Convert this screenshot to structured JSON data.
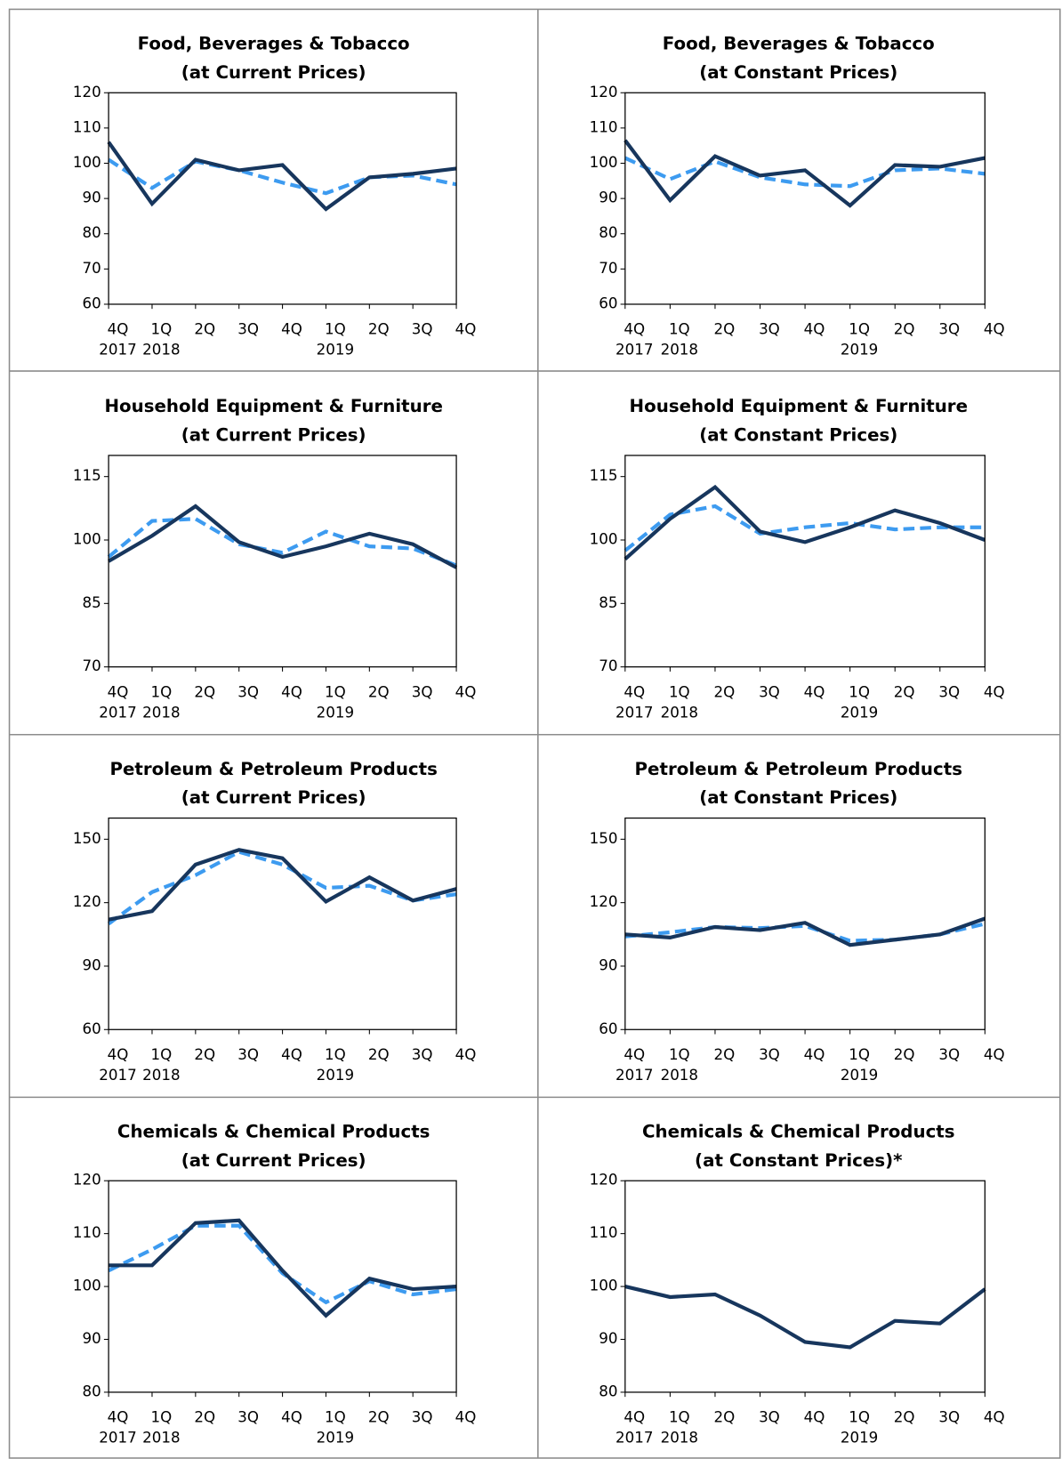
{
  "chart_data": [
    {
      "type": "line",
      "title": "Food, Beverages & Tobacco",
      "subtitle": "(at Current Prices)",
      "categories": [
        "4Q",
        "1Q",
        "2Q",
        "3Q",
        "4Q",
        "1Q",
        "2Q",
        "3Q",
        "4Q"
      ],
      "year_labels": [
        "2017",
        "2018",
        null,
        null,
        null,
        "2019",
        null,
        null,
        null
      ],
      "ylim": [
        60,
        120
      ],
      "yticks": [
        60,
        70,
        80,
        90,
        100,
        110,
        120
      ],
      "series": [
        {
          "color": "#3d9bf0",
          "dashed": true,
          "values": [
            101,
            93,
            100.5,
            98,
            94.5,
            91.5,
            96,
            96.5,
            94
          ]
        },
        {
          "color": "#17365d",
          "dashed": false,
          "values": [
            106,
            88.5,
            101,
            98,
            99.5,
            87,
            96,
            97,
            98.5
          ]
        }
      ]
    },
    {
      "type": "line",
      "title": "Food, Beverages & Tobacco",
      "subtitle": "(at Constant Prices)",
      "categories": [
        "4Q",
        "1Q",
        "2Q",
        "3Q",
        "4Q",
        "1Q",
        "2Q",
        "3Q",
        "4Q"
      ],
      "year_labels": [
        "2017",
        "2018",
        null,
        null,
        null,
        "2019",
        null,
        null,
        null
      ],
      "ylim": [
        60,
        120
      ],
      "yticks": [
        60,
        70,
        80,
        90,
        100,
        110,
        120
      ],
      "series": [
        {
          "color": "#3d9bf0",
          "dashed": true,
          "values": [
            101.5,
            95.5,
            100.5,
            96,
            94,
            93.5,
            98,
            98.5,
            97
          ]
        },
        {
          "color": "#17365d",
          "dashed": false,
          "values": [
            106.5,
            89.5,
            102,
            96.5,
            98,
            88,
            99.5,
            99,
            101.5
          ]
        }
      ]
    },
    {
      "type": "line",
      "title": "Household Equipment & Furniture",
      "subtitle": "(at Current Prices)",
      "categories": [
        "4Q",
        "1Q",
        "2Q",
        "3Q",
        "4Q",
        "1Q",
        "2Q",
        "3Q",
        "4Q"
      ],
      "year_labels": [
        "2017",
        "2018",
        null,
        null,
        null,
        "2019",
        null,
        null,
        null
      ],
      "ylim": [
        70,
        120
      ],
      "yticks": [
        70,
        85,
        100,
        115
      ],
      "series": [
        {
          "color": "#3d9bf0",
          "dashed": true,
          "values": [
            96,
            104.5,
            105,
            99,
            97,
            102,
            98.5,
            98,
            94
          ]
        },
        {
          "color": "#17365d",
          "dashed": false,
          "values": [
            95,
            101,
            108,
            99.5,
            96,
            98.5,
            101.5,
            99,
            93.5
          ]
        }
      ]
    },
    {
      "type": "line",
      "title": "Household Equipment & Furniture",
      "subtitle": "(at Constant Prices)",
      "categories": [
        "4Q",
        "1Q",
        "2Q",
        "3Q",
        "4Q",
        "1Q",
        "2Q",
        "3Q",
        "4Q"
      ],
      "year_labels": [
        "2017",
        "2018",
        null,
        null,
        null,
        "2019",
        null,
        null,
        null
      ],
      "ylim": [
        70,
        120
      ],
      "yticks": [
        70,
        85,
        100,
        115
      ],
      "series": [
        {
          "color": "#3d9bf0",
          "dashed": true,
          "values": [
            97.5,
            106,
            108,
            101.5,
            103,
            104,
            102.5,
            103,
            103
          ]
        },
        {
          "color": "#17365d",
          "dashed": false,
          "values": [
            95.5,
            105,
            112.5,
            102,
            99.5,
            103,
            107,
            104,
            100
          ]
        }
      ]
    },
    {
      "type": "line",
      "title": "Petroleum & Petroleum Products",
      "subtitle": "(at Current Prices)",
      "categories": [
        "4Q",
        "1Q",
        "2Q",
        "3Q",
        "4Q",
        "1Q",
        "2Q",
        "3Q",
        "4Q"
      ],
      "year_labels": [
        "2017",
        "2018",
        null,
        null,
        null,
        "2019",
        null,
        null,
        null
      ],
      "ylim": [
        60,
        160
      ],
      "yticks": [
        60,
        90,
        120,
        150
      ],
      "series": [
        {
          "color": "#3d9bf0",
          "dashed": true,
          "values": [
            110,
            125,
            133,
            144,
            138,
            127,
            128,
            121,
            124
          ]
        },
        {
          "color": "#17365d",
          "dashed": false,
          "values": [
            112,
            116,
            138,
            145,
            141,
            120.5,
            132,
            121,
            126.5
          ]
        }
      ]
    },
    {
      "type": "line",
      "title": "Petroleum & Petroleum Products",
      "subtitle": "(at Constant Prices)",
      "categories": [
        "4Q",
        "1Q",
        "2Q",
        "3Q",
        "4Q",
        "1Q",
        "2Q",
        "3Q",
        "4Q"
      ],
      "year_labels": [
        "2017",
        "2018",
        null,
        null,
        null,
        "2019",
        null,
        null,
        null
      ],
      "ylim": [
        60,
        160
      ],
      "yticks": [
        60,
        90,
        120,
        150
      ],
      "series": [
        {
          "color": "#3d9bf0",
          "dashed": true,
          "values": [
            104,
            106,
            108.5,
            108,
            109,
            102,
            102.5,
            105,
            110
          ]
        },
        {
          "color": "#17365d",
          "dashed": false,
          "values": [
            105,
            103.5,
            108.5,
            107,
            110.5,
            100,
            102.5,
            105,
            112.5
          ]
        }
      ]
    },
    {
      "type": "line",
      "title": "Chemicals & Chemical Products",
      "subtitle": "(at Current Prices)",
      "categories": [
        "4Q",
        "1Q",
        "2Q",
        "3Q",
        "4Q",
        "1Q",
        "2Q",
        "3Q",
        "4Q"
      ],
      "year_labels": [
        "2017",
        "2018",
        null,
        null,
        null,
        "2019",
        null,
        null,
        null
      ],
      "ylim": [
        80,
        120
      ],
      "yticks": [
        80,
        90,
        100,
        110,
        120
      ],
      "series": [
        {
          "color": "#3d9bf0",
          "dashed": true,
          "values": [
            103,
            107,
            111.5,
            111.5,
            102.5,
            97,
            101,
            98.5,
            99.5
          ]
        },
        {
          "color": "#17365d",
          "dashed": false,
          "values": [
            104,
            104,
            112,
            112.5,
            103,
            94.5,
            101.5,
            99.5,
            100
          ]
        }
      ]
    },
    {
      "type": "line",
      "title": "Chemicals & Chemical Products",
      "subtitle": "(at Constant Prices)*",
      "categories": [
        "4Q",
        "1Q",
        "2Q",
        "3Q",
        "4Q",
        "1Q",
        "2Q",
        "3Q",
        "4Q"
      ],
      "year_labels": [
        "2017",
        "2018",
        null,
        null,
        null,
        "2019",
        null,
        null,
        null
      ],
      "ylim": [
        80,
        120
      ],
      "yticks": [
        80,
        90,
        100,
        110,
        120
      ],
      "series": [
        {
          "color": "#17365d",
          "dashed": false,
          "values": [
            100,
            98,
            98.5,
            94.5,
            89.5,
            88.5,
            93.5,
            93,
            99.5
          ]
        }
      ]
    }
  ]
}
